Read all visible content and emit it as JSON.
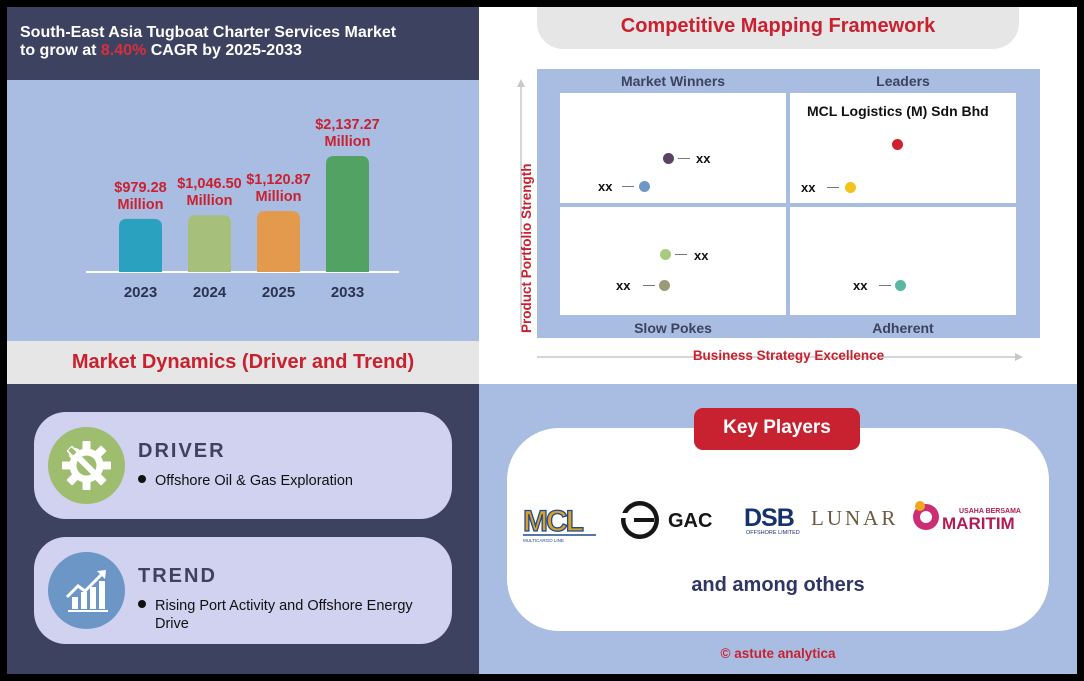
{
  "header": {
    "line1": "South-East Asia Tugboat Charter Services Market",
    "line2_pre": "to grow at ",
    "line2_highlight": "8.40%",
    "line2_post": " CAGR by 2025-2033"
  },
  "chart_data": {
    "type": "bar",
    "categories": [
      "2023",
      "2024",
      "2025",
      "2033"
    ],
    "values": [
      979.28,
      1046.5,
      1120.87,
      2137.27
    ],
    "value_labels": [
      "$979.28",
      "$1,046.50",
      "$1,120.87",
      "$2,137.27"
    ],
    "unit_label": "Million",
    "colors": [
      "#2aa1bf",
      "#a6c07b",
      "#e39a4d",
      "#52a263"
    ],
    "label_color": "#c8212f"
  },
  "market_dynamics": {
    "title": "Market Dynamics (Driver and Trend)",
    "driver": {
      "title": "DRIVER",
      "text": "Offshore Oil & Gas Exploration",
      "icon": "gear-wrench-icon"
    },
    "trend": {
      "title": "TREND",
      "text": "Rising Port Activity and Offshore Energy Drive",
      "icon": "growth-chart-icon"
    }
  },
  "competitive_mapping": {
    "title": "Competitive Mapping Framework",
    "quadrants": {
      "top_left": "Market Winners",
      "top_right": "Leaders",
      "bottom_left": "Slow Pokes",
      "bottom_right": "Adherent"
    },
    "y_axis_label": "Product Portfolio Strength",
    "x_axis_label": "Business Strategy Excellence",
    "leader_name": "MCL Logistics (M) Sdn Bhd",
    "points": [
      {
        "label": "xx",
        "color": "#5a4462"
      },
      {
        "label": "xx",
        "color": "#6f98c6"
      },
      {
        "label": "",
        "color": "#d0202e"
      },
      {
        "label": "xx",
        "color": "#f3c419"
      },
      {
        "label": "xx",
        "color": "#a9cb7e"
      },
      {
        "label": "xx",
        "color": "#9a9b76"
      },
      {
        "label": "xx",
        "color": "#5bb6a2"
      }
    ]
  },
  "key_players": {
    "title": "Key Players",
    "logos": [
      {
        "name": "MCL",
        "sub": "MULTICARGO LINE"
      },
      {
        "name": "GAC"
      },
      {
        "name": "DSB",
        "sub": "OFFSHORE LIMITED"
      },
      {
        "name": "LUNAR"
      },
      {
        "name": "MARITIM",
        "sub": "USAHA BERSAMA"
      }
    ],
    "footer": "and among others"
  },
  "copyright": "© astute analytica"
}
